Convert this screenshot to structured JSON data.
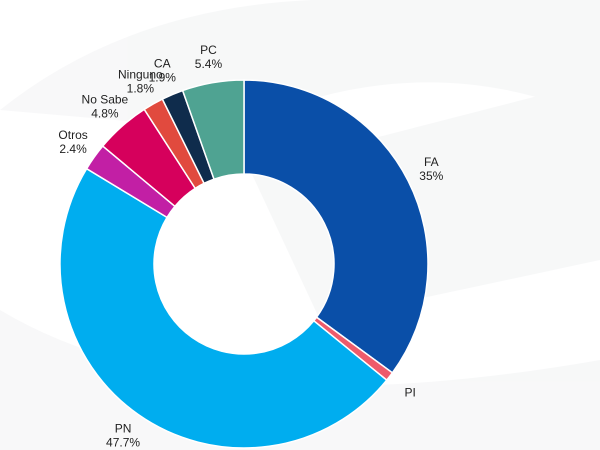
{
  "chart_data": {
    "type": "pie",
    "donut": true,
    "slices": [
      {
        "label": "FA",
        "value_text": "35%",
        "value": 35,
        "color": "#0a4fa8"
      },
      {
        "label": "PI",
        "value_text": "",
        "value": 0.8,
        "color": "#ee5b6b"
      },
      {
        "label": "PN",
        "value_text": "47.7%",
        "value": 47.7,
        "color": "#00adef"
      },
      {
        "label": "Otros",
        "value_text": "2.4%",
        "value": 2.4,
        "color": "#c21fa5"
      },
      {
        "label": "No Sabe",
        "value_text": "4.8%",
        "value": 4.8,
        "color": "#d6005c"
      },
      {
        "label": "Ninguno",
        "value_text": "1.8%",
        "value": 1.8,
        "color": "#e14a3e"
      },
      {
        "label": "CA",
        "value_text": "1.9%",
        "value": 1.9,
        "color": "#0f2c4c"
      },
      {
        "label": "PC",
        "value_text": "5.4%",
        "value": 5.4,
        "color": "#4fa392"
      }
    ]
  }
}
